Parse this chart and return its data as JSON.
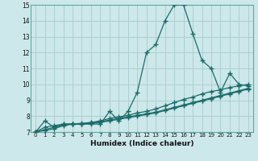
{
  "xlabel": "Humidex (Indice chaleur)",
  "bg_color": "#cde8ea",
  "grid_color": "#aacfd2",
  "line_color": "#1a6b6a",
  "xlim": [
    -0.5,
    23.5
  ],
  "ylim": [
    7,
    15
  ],
  "xticks": [
    0,
    1,
    2,
    3,
    4,
    5,
    6,
    7,
    8,
    9,
    10,
    11,
    12,
    13,
    14,
    15,
    16,
    17,
    18,
    19,
    20,
    21,
    22,
    23
  ],
  "yticks": [
    7,
    8,
    9,
    10,
    11,
    12,
    13,
    14,
    15
  ],
  "line1_x": [
    0,
    1,
    2,
    3,
    4,
    5,
    6,
    7,
    8,
    9,
    10,
    11,
    12,
    13,
    14,
    15,
    16,
    17,
    18,
    19,
    20,
    21,
    22,
    23
  ],
  "line1_y": [
    7.0,
    7.7,
    7.3,
    7.5,
    7.5,
    7.5,
    7.5,
    7.5,
    8.3,
    7.7,
    8.3,
    9.5,
    12.0,
    12.5,
    14.0,
    15.0,
    15.0,
    13.2,
    11.5,
    11.0,
    9.5,
    10.7,
    10.0,
    9.9
  ],
  "line2_x": [
    0,
    1,
    2,
    3,
    4,
    5,
    6,
    7,
    8,
    9,
    10,
    11,
    12,
    13,
    14,
    15,
    16,
    17,
    18,
    19,
    20,
    21,
    22,
    23
  ],
  "line2_y": [
    7.0,
    7.3,
    7.4,
    7.5,
    7.5,
    7.5,
    7.6,
    7.7,
    7.85,
    7.95,
    8.05,
    8.2,
    8.3,
    8.45,
    8.65,
    8.85,
    9.05,
    9.2,
    9.4,
    9.55,
    9.65,
    9.8,
    9.9,
    10.0
  ],
  "line3_x": [
    0,
    1,
    2,
    3,
    4,
    5,
    6,
    7,
    8,
    9,
    10,
    11,
    12,
    13,
    14,
    15,
    16,
    17,
    18,
    19,
    20,
    21,
    22,
    23
  ],
  "line3_y": [
    7.0,
    7.15,
    7.3,
    7.45,
    7.5,
    7.55,
    7.6,
    7.65,
    7.75,
    7.85,
    7.95,
    8.05,
    8.15,
    8.25,
    8.4,
    8.55,
    8.7,
    8.85,
    9.0,
    9.15,
    9.3,
    9.45,
    9.6,
    9.75
  ],
  "line4_x": [
    0,
    1,
    2,
    3,
    4,
    5,
    6,
    7,
    8,
    9,
    10,
    11,
    12,
    13,
    14,
    15,
    16,
    17,
    18,
    19,
    20,
    21,
    22,
    23
  ],
  "line4_y": [
    7.0,
    7.1,
    7.2,
    7.4,
    7.5,
    7.5,
    7.55,
    7.6,
    7.7,
    7.8,
    7.9,
    8.0,
    8.1,
    8.2,
    8.35,
    8.5,
    8.65,
    8.8,
    8.95,
    9.1,
    9.25,
    9.4,
    9.55,
    9.7
  ]
}
